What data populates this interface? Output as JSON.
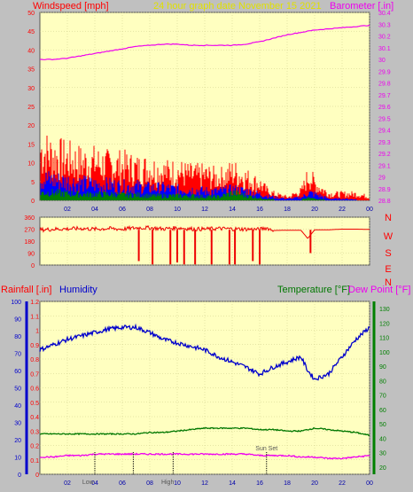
{
  "header": {
    "windspeed_label": "Windspeed [mph]",
    "title": "24 hour graph date   November 15 2021",
    "barometer_label": "Barometer [.in]"
  },
  "lower_header": {
    "rainfall_label": "Rainfall [.in]",
    "humidity_label": "Humidity",
    "temperature_label": "Temperature [°F]",
    "dewpoint_label": "Dew Point [°F]"
  },
  "colors": {
    "panel_bg": "#ffffc0",
    "page_bg": "#c0c0c0",
    "gust": "#ff0000",
    "wind_avg": "#0000ff",
    "wind_low": "#008000",
    "barometer": "#ee00ee",
    "direction": "#ee0000",
    "humidity": "#0000cc",
    "temperature": "#007700",
    "dewpoint": "#ee00ee",
    "rain_axis": "#0000cc",
    "temp_axis": "#008000",
    "title": "#e0e000"
  },
  "chart_data": [
    {
      "type": "area",
      "name": "wind_and_barometer",
      "x_ticks": [
        "02",
        "04",
        "06",
        "08",
        "10",
        "12",
        "14",
        "16",
        "18",
        "20",
        "22",
        "00"
      ],
      "ylim_left": [
        0,
        50
      ],
      "yticks_left": [
        "0",
        "5",
        "10",
        "15",
        "20",
        "25",
        "30",
        "35",
        "40",
        "45",
        "50"
      ],
      "ylim_right": [
        28.8,
        30.4
      ],
      "yticks_right": [
        "28.8",
        "28.9",
        "29",
        "29.1",
        "29.2",
        "29.3",
        "29.4",
        "29.5",
        "29.6",
        "29.7",
        "29.8",
        "29.9",
        "30",
        "30.1",
        "30.2",
        "30.3",
        "30.4"
      ],
      "series": [
        {
          "name": "Gust",
          "x": [
            0,
            1,
            2,
            3,
            4,
            5,
            6,
            7,
            8,
            9,
            10,
            11,
            12,
            13,
            14,
            15,
            16,
            16.5,
            17,
            18,
            19,
            19.5,
            20,
            21,
            22,
            23,
            24
          ],
          "values": [
            16,
            14,
            13,
            12,
            12,
            11,
            11,
            10,
            10,
            9,
            9,
            8,
            8,
            7,
            9,
            7,
            5,
            3,
            2,
            1,
            3,
            8,
            5,
            2,
            2,
            2,
            1
          ]
        },
        {
          "name": "Wind",
          "x": [
            0,
            1,
            2,
            3,
            4,
            5,
            6,
            7,
            8,
            9,
            10,
            11,
            12,
            13,
            14,
            15,
            16,
            16.5,
            17,
            18,
            19,
            19.5,
            20,
            21,
            22,
            23,
            24
          ],
          "values": [
            7,
            6.5,
            6,
            5.5,
            5,
            5,
            4.5,
            4.5,
            4,
            4,
            3.5,
            3.5,
            3,
            3,
            3.5,
            3,
            2,
            1.5,
            1,
            0.5,
            1,
            2.5,
            2,
            0.5,
            0.5,
            0.3,
            0.2
          ]
        },
        {
          "name": "WindLow",
          "x": [
            0,
            1,
            2,
            3,
            4,
            5,
            6,
            7,
            8,
            9,
            10,
            11,
            12,
            13,
            14,
            15,
            16,
            16.5,
            17,
            18,
            19,
            19.5,
            20,
            21,
            22,
            23,
            24
          ],
          "values": [
            2.5,
            2.5,
            2.2,
            2,
            2,
            2,
            1.8,
            1.8,
            1.5,
            1.5,
            1.5,
            1.5,
            1.2,
            1.2,
            2.5,
            1.5,
            0.8,
            0.5,
            0.3,
            0.2,
            0.3,
            0.8,
            0.5,
            0.2,
            0.1,
            0.1,
            0.1
          ]
        },
        {
          "name": "Barometer",
          "x": [
            0,
            1,
            2,
            3,
            4,
            5,
            6,
            7,
            8,
            9,
            10,
            11,
            12,
            13,
            14,
            15,
            16,
            17,
            18,
            19,
            20,
            21,
            22,
            23,
            24
          ],
          "values": [
            30.0,
            30.0,
            30.01,
            30.03,
            30.05,
            30.07,
            30.09,
            30.11,
            30.12,
            30.13,
            30.13,
            30.12,
            30.12,
            30.12,
            30.12,
            30.13,
            30.15,
            30.18,
            30.21,
            30.23,
            30.25,
            30.26,
            30.27,
            30.28,
            30.29
          ]
        }
      ]
    },
    {
      "type": "line",
      "name": "wind_direction",
      "x_ticks": [],
      "ylim": [
        0,
        360
      ],
      "yticks": [
        "0",
        "90",
        "180",
        "270",
        "360"
      ],
      "compass_labels": [
        "N",
        "W",
        "S",
        "E",
        "N"
      ],
      "series": [
        {
          "name": "Direction",
          "x": [
            0,
            1,
            2,
            3,
            4,
            5,
            6,
            7,
            8,
            9,
            10,
            11,
            12,
            13,
            14,
            15,
            16,
            16.5,
            17,
            18,
            19,
            19.5,
            20,
            21,
            22,
            23,
            24
          ],
          "values": [
            265,
            270,
            272,
            275,
            270,
            275,
            270,
            280,
            280,
            272,
            280,
            272,
            270,
            275,
            272,
            270,
            268,
            280,
            260,
            262,
            262,
            200,
            265,
            265,
            270,
            270,
            268
          ]
        },
        {
          "name": "Drops",
          "x": [
            7.2,
            8.2,
            9.5,
            10.0,
            10.5,
            11.3,
            12.5,
            13.8,
            14.2,
            15.5,
            16.0,
            19.7
          ],
          "values": [
            30,
            5,
            5,
            20,
            5,
            5,
            5,
            5,
            5,
            30,
            5,
            90
          ]
        }
      ]
    },
    {
      "type": "line",
      "name": "rain_humidity_temperature",
      "x_ticks": [
        "02",
        "04",
        "06",
        "08",
        "10",
        "12",
        "14",
        "16",
        "18",
        "20",
        "22",
        "00"
      ],
      "ylim_humidity": [
        0,
        100
      ],
      "yticks_humidity": [
        "0",
        "10",
        "20",
        "30",
        "40",
        "50",
        "60",
        "70",
        "80",
        "90",
        "100"
      ],
      "ylim_rain": [
        0,
        1.2
      ],
      "yticks_rain": [
        "0",
        "0.1",
        "0.2",
        "0.3",
        "0.4",
        "0.5",
        "0.6",
        "0.7",
        "0.8",
        "0.9",
        "1",
        "1.1",
        "1.2"
      ],
      "ylim_temp": [
        15,
        135
      ],
      "yticks_temp": [
        "20",
        "30",
        "40",
        "50",
        "60",
        "70",
        "80",
        "90",
        "100",
        "110",
        "120",
        "130"
      ],
      "series": [
        {
          "name": "Humidity",
          "x": [
            0,
            1,
            2,
            3,
            4,
            5,
            6,
            7,
            8,
            9,
            10,
            11,
            12,
            13,
            14,
            15,
            16,
            17,
            18,
            19,
            19.5,
            20,
            21,
            22,
            23,
            24
          ],
          "values": [
            72,
            75,
            78,
            80,
            82,
            84,
            85,
            85,
            82,
            78,
            76,
            74,
            72,
            68,
            65,
            62,
            58,
            62,
            65,
            68,
            60,
            55,
            58,
            68,
            78,
            85
          ]
        },
        {
          "name": "Temperature",
          "x": [
            0,
            1,
            2,
            3,
            4,
            5,
            6,
            7,
            8,
            9,
            10,
            11,
            12,
            13,
            14,
            15,
            16,
            17,
            18,
            19,
            20,
            21,
            22,
            23,
            24
          ],
          "values": [
            43,
            43,
            43,
            43,
            43,
            43,
            43,
            43,
            44,
            44,
            45,
            46,
            47,
            47,
            47,
            47,
            46,
            46,
            45,
            45,
            47,
            46,
            45,
            44,
            42
          ]
        },
        {
          "name": "DewPoint",
          "x": [
            0,
            1,
            2,
            3,
            4,
            5,
            6,
            7,
            8,
            9,
            10,
            11,
            12,
            13,
            14,
            15,
            16,
            17,
            18,
            19,
            20,
            21,
            22,
            23,
            24
          ],
          "values": [
            27,
            27,
            28,
            28,
            29,
            29,
            29,
            29,
            29,
            29,
            29,
            29,
            29,
            29,
            29,
            29,
            28,
            28,
            28,
            27,
            27,
            26,
            26,
            27,
            28
          ]
        }
      ],
      "markers": [
        {
          "text": "Low",
          "x": 3.5
        },
        {
          "text": "High",
          "x": 9.3
        },
        {
          "text": "Sun Set",
          "x": 16.5
        }
      ],
      "dotted_lines_x": [
        4.0,
        6.8,
        9.7,
        16.5
      ]
    }
  ]
}
